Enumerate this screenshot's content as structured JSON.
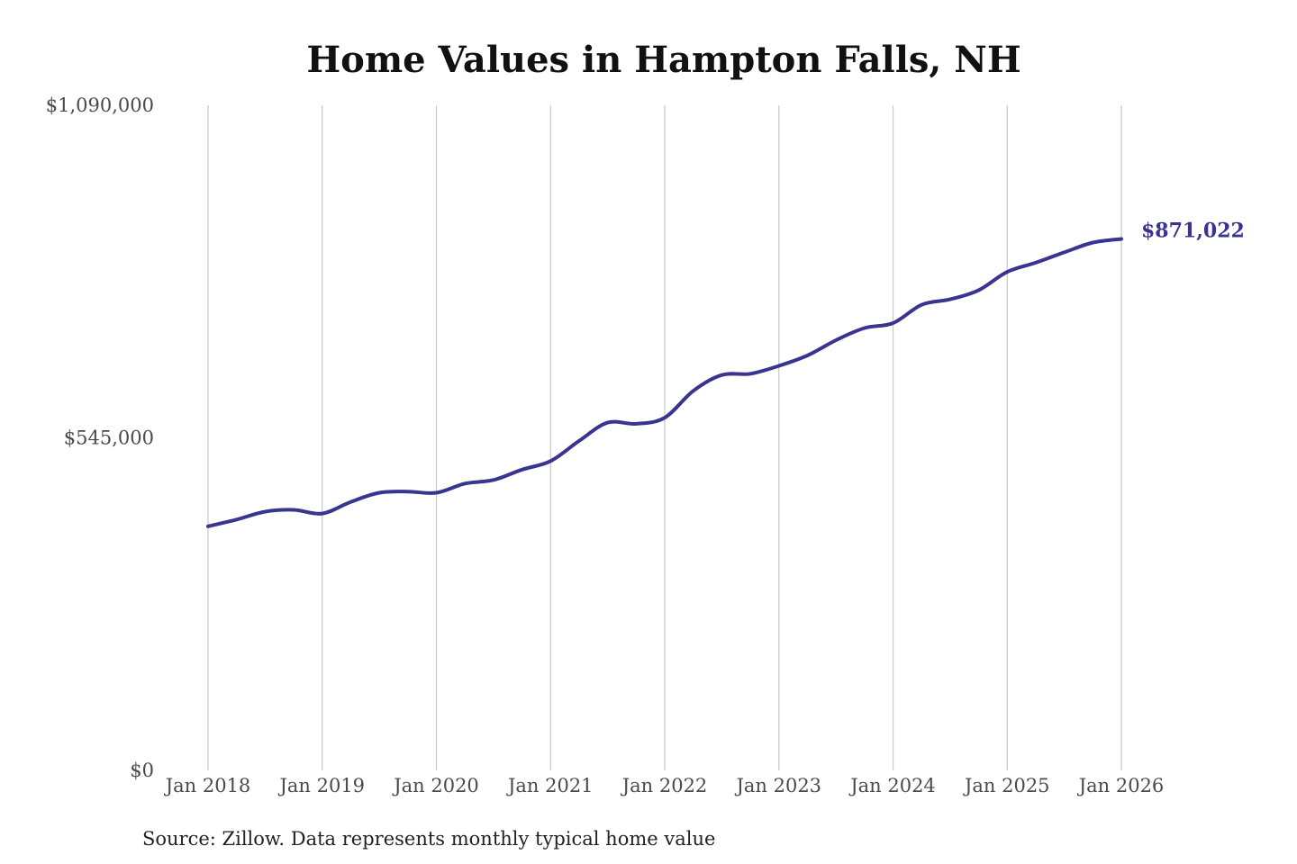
{
  "chart_data": {
    "type": "line",
    "title": "Home Values in Hampton Falls, NH",
    "xlabel": "",
    "ylabel": "",
    "ylim": [
      0,
      1090000
    ],
    "xlim": [
      "2018-01",
      "2026-01"
    ],
    "y_ticks": [
      {
        "value": 0,
        "label": "$0"
      },
      {
        "value": 545000,
        "label": "$545,000"
      },
      {
        "value": 1090000,
        "label": "$1,090,000"
      }
    ],
    "x_ticks": [
      {
        "date": "2018-01",
        "label": "Jan 2018"
      },
      {
        "date": "2019-01",
        "label": "Jan 2019"
      },
      {
        "date": "2020-01",
        "label": "Jan 2020"
      },
      {
        "date": "2021-01",
        "label": "Jan 2021"
      },
      {
        "date": "2022-01",
        "label": "Jan 2022"
      },
      {
        "date": "2023-01",
        "label": "Jan 2023"
      },
      {
        "date": "2024-01",
        "label": "Jan 2024"
      },
      {
        "date": "2025-01",
        "label": "Jan 2025"
      },
      {
        "date": "2026-01",
        "label": "Jan 2026"
      }
    ],
    "grid": "vertical",
    "legend": "none",
    "end_label": "$871,022",
    "source": "Source: Zillow. Data represents monthly typical home value",
    "line_color": "#38348f",
    "series": [
      {
        "values": [
          {
            "x": "2018-01",
            "y": 400000
          },
          {
            "x": "2018-04",
            "y": 411000
          },
          {
            "x": "2018-07",
            "y": 424000
          },
          {
            "x": "2018-10",
            "y": 427000
          },
          {
            "x": "2019-01",
            "y": 421000
          },
          {
            "x": "2019-04",
            "y": 440000
          },
          {
            "x": "2019-07",
            "y": 455000
          },
          {
            "x": "2019-10",
            "y": 457000
          },
          {
            "x": "2020-01",
            "y": 455000
          },
          {
            "x": "2020-04",
            "y": 470000
          },
          {
            "x": "2020-07",
            "y": 476000
          },
          {
            "x": "2020-10",
            "y": 493000
          },
          {
            "x": "2021-01",
            "y": 507000
          },
          {
            "x": "2021-04",
            "y": 540000
          },
          {
            "x": "2021-07",
            "y": 570000
          },
          {
            "x": "2021-10",
            "y": 568000
          },
          {
            "x": "2022-01",
            "y": 578000
          },
          {
            "x": "2022-04",
            "y": 622000
          },
          {
            "x": "2022-07",
            "y": 648000
          },
          {
            "x": "2022-10",
            "y": 650000
          },
          {
            "x": "2023-01",
            "y": 663000
          },
          {
            "x": "2023-04",
            "y": 680000
          },
          {
            "x": "2023-07",
            "y": 705000
          },
          {
            "x": "2023-10",
            "y": 725000
          },
          {
            "x": "2024-01",
            "y": 733000
          },
          {
            "x": "2024-04",
            "y": 763000
          },
          {
            "x": "2024-07",
            "y": 772000
          },
          {
            "x": "2024-10",
            "y": 787000
          },
          {
            "x": "2025-01",
            "y": 817000
          },
          {
            "x": "2025-04",
            "y": 832000
          },
          {
            "x": "2025-07",
            "y": 849000
          },
          {
            "x": "2025-10",
            "y": 865000
          },
          {
            "x": "2026-01",
            "y": 871022
          }
        ]
      }
    ]
  }
}
